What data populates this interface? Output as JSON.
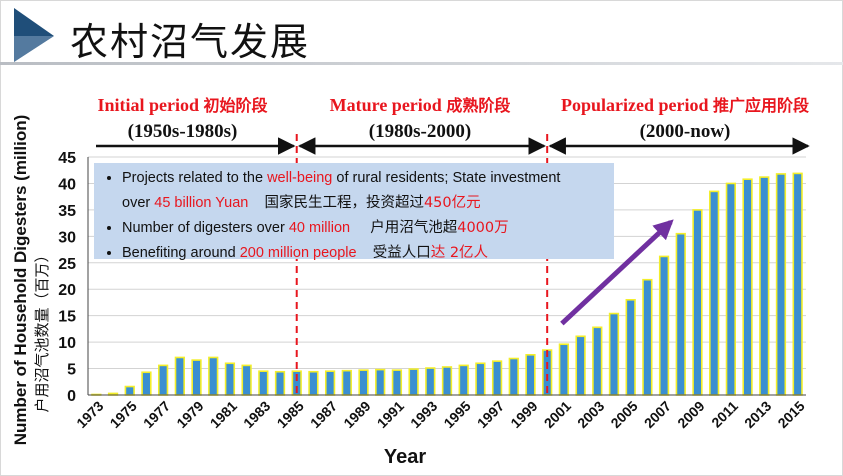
{
  "slide": {
    "title": "农村沼气发展",
    "accent_color": "#1f4e79"
  },
  "periods": [
    {
      "name": "Initial period",
      "cn": "初始阶段",
      "range": "(1950s-1980s)"
    },
    {
      "name": "Mature period",
      "cn": "成熟阶段",
      "range": "(1980s-2000)"
    },
    {
      "name": "Popularized period",
      "cn": "推广应用阶段",
      "range": "(2000-now)"
    }
  ],
  "info": {
    "line1_pre": "Projects related to the ",
    "line1_red": "well-being",
    "line1_post": " of rural residents; State investment",
    "line2_pre": "over ",
    "line2_red": "45 billion Yuan",
    "line2_cn": "国家民生工程，投资超过",
    "line2_cn_red": "450亿元",
    "line3_pre": "Number of digesters over ",
    "line3_red": "40 million",
    "line3_cn": "户用沼气池超",
    "line3_cn_red": "4000万",
    "line4_pre": "Benefiting around ",
    "line4_red": "200 million people",
    "line4_cn": "受益人口",
    "line4_cn_red": "达 2亿人"
  },
  "chart_data": {
    "type": "bar",
    "title": "",
    "xlabel": "Year",
    "ylabel": "Number of Household Digesters (million)",
    "ylabel_cn": "户用沼气池数量（百万）",
    "ylim": [
      0,
      45
    ],
    "yticks": [
      0,
      5,
      10,
      15,
      20,
      25,
      30,
      35,
      40,
      45
    ],
    "grid": true,
    "bar_color": "#3a8fd1",
    "bar_edge_color": "#f3ee2a",
    "x_tick_labels": [
      "1973",
      "1975",
      "1977",
      "1979",
      "1981",
      "1983",
      "1985",
      "1987",
      "1989",
      "1991",
      "1993",
      "1995",
      "1997",
      "1999",
      "2001",
      "2003",
      "2005",
      "2007",
      "2009",
      "2011",
      "2013",
      "2015"
    ],
    "categories": [
      "1973",
      "1974",
      "1975",
      "1976",
      "1977",
      "1978",
      "1979",
      "1980",
      "1981",
      "1982",
      "1983",
      "1984",
      "1985",
      "1986",
      "1987",
      "1988",
      "1989",
      "1990",
      "1991",
      "1992",
      "1993",
      "1994",
      "1995",
      "1996",
      "1997",
      "1998",
      "1999",
      "2000",
      "2001",
      "2002",
      "2003",
      "2004",
      "2005",
      "2006",
      "2007",
      "2008",
      "2009",
      "2010",
      "2011",
      "2012",
      "2013",
      "2014",
      "2015"
    ],
    "values": [
      0.1,
      0.3,
      1.6,
      4.3,
      5.6,
      7.1,
      6.6,
      7.1,
      6.0,
      5.6,
      4.5,
      4.4,
      4.5,
      4.4,
      4.5,
      4.6,
      4.7,
      4.8,
      4.7,
      4.9,
      5.1,
      5.3,
      5.6,
      6.0,
      6.4,
      6.9,
      7.6,
      8.5,
      9.6,
      11.1,
      12.8,
      15.4,
      18.0,
      21.8,
      26.2,
      30.5,
      35.0,
      38.5,
      40.0,
      40.8,
      41.2,
      41.8,
      41.9
    ],
    "dividers_at": [
      "1985",
      "2000"
    ],
    "trend_arrow": {
      "from": "2001",
      "to": "2008",
      "start_value": 13.5,
      "end_value": 32.7,
      "color": "#7030a0"
    }
  }
}
